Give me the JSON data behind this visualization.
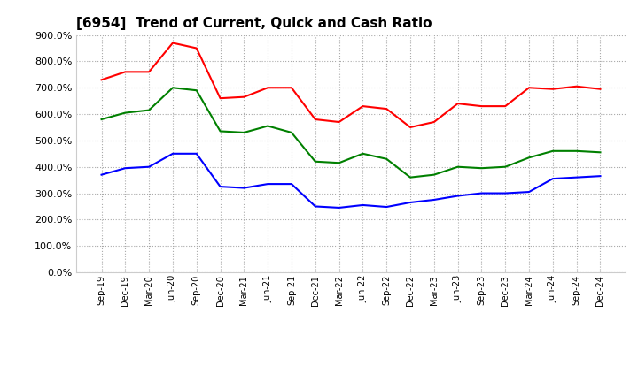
{
  "title": "[6954]  Trend of Current, Quick and Cash Ratio",
  "labels": [
    "Sep-19",
    "Dec-19",
    "Mar-20",
    "Jun-20",
    "Sep-20",
    "Dec-20",
    "Mar-21",
    "Jun-21",
    "Sep-21",
    "Dec-21",
    "Mar-22",
    "Jun-22",
    "Sep-22",
    "Dec-22",
    "Mar-23",
    "Jun-23",
    "Sep-23",
    "Dec-23",
    "Mar-24",
    "Jun-24",
    "Sep-24",
    "Dec-24"
  ],
  "current_ratio": [
    730,
    760,
    760,
    870,
    850,
    660,
    665,
    700,
    700,
    580,
    570,
    630,
    620,
    550,
    570,
    640,
    630,
    630,
    700,
    695,
    705,
    695
  ],
  "quick_ratio": [
    580,
    605,
    615,
    700,
    690,
    535,
    530,
    555,
    530,
    420,
    415,
    450,
    430,
    360,
    370,
    400,
    395,
    400,
    435,
    460,
    460,
    455
  ],
  "cash_ratio": [
    370,
    395,
    400,
    450,
    450,
    325,
    320,
    335,
    335,
    250,
    245,
    255,
    248,
    265,
    275,
    290,
    300,
    300,
    305,
    355,
    360,
    365
  ],
  "current_color": "#ff0000",
  "quick_color": "#008000",
  "cash_color": "#0000ff",
  "ylim": [
    0,
    900
  ],
  "yticks": [
    0,
    100,
    200,
    300,
    400,
    500,
    600,
    700,
    800,
    900
  ],
  "background_color": "#ffffff",
  "grid_color": "#aaaaaa",
  "line_width": 1.5,
  "title_fontsize": 11
}
